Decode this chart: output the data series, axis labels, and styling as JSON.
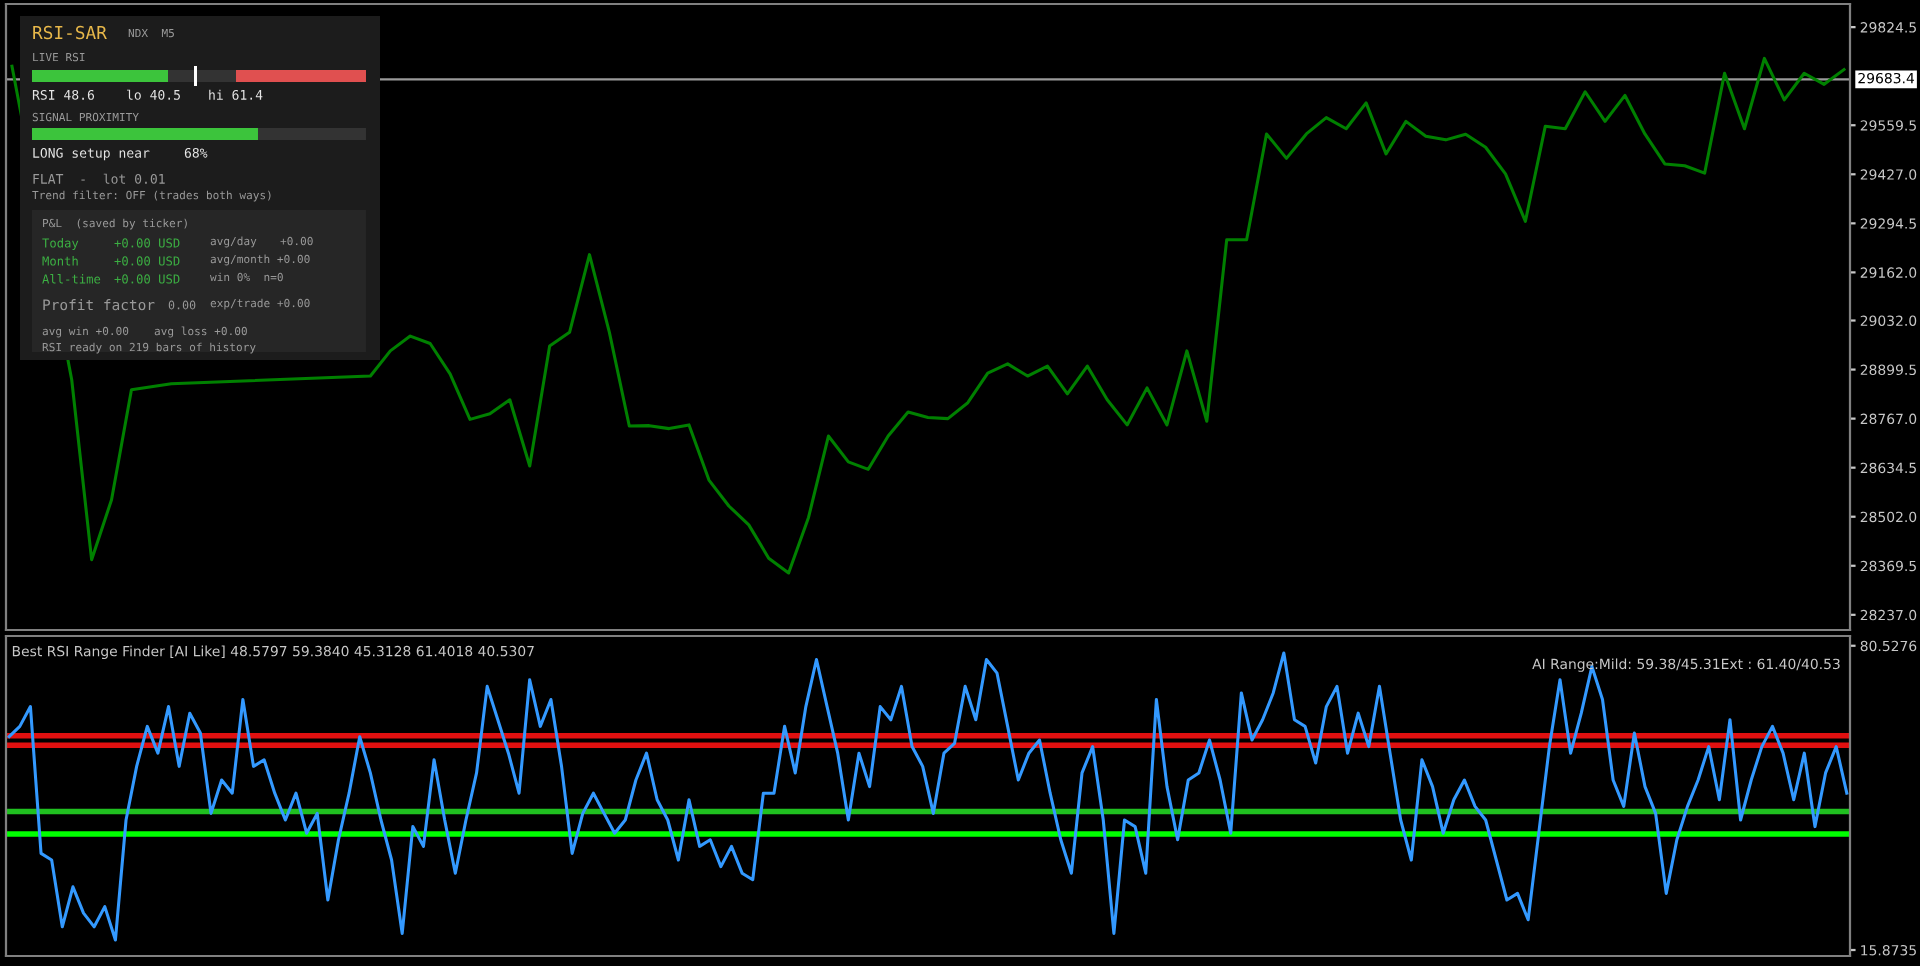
{
  "chart_data": [
    {
      "type": "line",
      "categories": [
        null,
        null,
        null,
        null,
        null,
        null,
        null,
        null,
        null,
        null,
        null,
        null,
        null,
        null,
        null,
        null,
        null,
        null,
        null,
        null,
        null,
        null,
        null,
        null,
        null,
        null,
        null,
        null,
        null,
        null,
        null,
        null,
        null,
        null,
        null,
        null,
        null,
        null,
        null,
        null,
        null,
        null,
        null,
        null,
        null,
        null,
        null,
        null,
        null,
        null,
        null,
        null,
        null,
        null,
        null,
        null,
        null,
        null,
        null,
        null,
        null,
        null,
        null,
        null,
        null,
        null,
        null,
        null,
        null,
        null,
        null,
        null,
        null,
        null,
        null,
        null,
        null,
        null,
        null,
        null,
        null,
        null,
        null,
        null,
        null,
        null,
        null,
        null,
        null,
        null,
        null,
        null,
        null
      ],
      "ylim": [
        28196,
        29887
      ],
      "yticks": [
        {
          "value": 28237,
          "label": "28237.0"
        },
        28369.5,
        {
          "value": 28502,
          "label": "28502.0"
        },
        28634.5,
        {
          "value": 28767,
          "label": "28767.0"
        },
        28899.5,
        {
          "value": 29032,
          "label": "29032.0"
        },
        {
          "value": 29162,
          "label": "29162.0"
        },
        29294.5,
        {
          "value": 29427,
          "label": "29427.0"
        },
        29559.5,
        29824.5
      ],
      "tick_labels": "y",
      "grid": false,
      "ref_lines": [
        {
          "axis": "y",
          "value": 29683.4,
          "label": "29683.4",
          "color": "#9a9a9a"
        }
      ],
      "series": [
        {
          "color": "#008000",
          "values": [
            29719,
            null,
            null,
            28872,
            28386,
            28548,
            28845,
            null,
            28861,
            null,
            null,
            null,
            null,
            null,
            null,
            null,
            null,
            null,
            28882,
            28950,
            28990,
            28970,
            28888,
            28765,
            28780,
            28818,
            28639,
            28963,
            29000,
            29210,
            29000,
            28747,
            28748,
            28740,
            28750,
            28601,
            28531,
            28480,
            28390,
            28350,
            28500,
            28720,
            28650,
            28630,
            28720,
            28785,
            28770,
            28767,
            28810,
            28890,
            28915,
            28882,
            28909,
            28834,
            28909,
            28818,
            28750,
            28850,
            28750,
            28950,
            28760,
            29250,
            29250,
            29536,
            29470,
            29536,
            29580,
            29550,
            29620,
            29482,
            29570,
            29530,
            29520,
            29535,
            29500,
            29428,
            29300,
            29557,
            29550,
            29650,
            29570,
            29640,
            29536,
            29455,
            29450,
            29430,
            29700,
            29550,
            29740,
            29628,
            29700,
            29670,
            29710
          ]
        }
      ]
    },
    {
      "type": "other",
      "title": "RSI-SAR",
      "subtitle": "NDX  M5",
      "annotations": [
        "LIVE RSI",
        "RSI 48.6",
        "lo 40.5",
        "hi 61.4",
        "SIGNAL PROXIMITY",
        "LONG setup near",
        "68%",
        "FLAT  -  lot 0.01",
        "Trend filter: OFF (trades both ways)",
        "P&L  (saved by ticker)",
        "Today",
        "+0.00 USD",
        "avg/day",
        "+0.00",
        "Month",
        "+0.00 USD",
        "avg/month +0.00",
        "All-time",
        "+0.00 USD",
        "win 0%  n=0",
        "Profit factor",
        "0.00",
        "exp/trade +0.00",
        "avg win +0.00",
        "avg loss +0.00",
        "RSI ready on 219 bars of history"
      ]
    },
    {
      "type": "line",
      "title": "Best RSI Range Finder [AI Like] 48.5797 59.3840 45.3128 61.4018 40.5307",
      "categories": [
        null,
        null,
        null,
        null,
        null,
        null,
        null,
        null,
        null,
        null,
        null,
        null,
        null,
        null,
        null,
        null,
        null,
        null,
        null,
        null,
        null,
        null,
        null,
        null,
        null,
        null,
        null,
        null,
        null,
        null,
        null,
        null,
        null,
        null,
        null,
        null,
        null,
        null,
        null,
        null,
        null,
        null,
        null,
        null,
        null,
        null,
        null,
        null,
        null,
        null,
        null,
        null,
        null,
        null,
        null,
        null,
        null,
        null,
        null,
        null,
        null,
        null,
        null,
        null,
        null,
        null,
        null,
        null,
        null,
        null,
        null,
        null,
        null,
        null,
        null,
        null,
        null,
        null,
        null,
        null,
        null,
        null,
        null,
        null,
        null,
        null,
        null,
        null,
        null,
        null,
        null,
        null,
        null,
        null,
        null,
        null,
        null,
        null,
        null,
        null,
        null,
        null,
        null,
        null,
        null,
        null,
        null,
        null,
        null,
        null,
        null,
        null,
        null,
        null,
        null,
        null,
        null,
        null,
        null,
        null,
        null,
        null,
        null,
        null,
        null,
        null,
        null,
        null,
        null,
        null,
        null,
        null,
        null,
        null,
        null,
        null,
        null,
        null,
        null,
        null,
        null,
        null,
        null,
        null,
        null,
        null,
        null,
        null,
        null,
        null,
        null,
        null,
        null,
        null,
        null,
        null,
        null,
        null,
        null,
        null,
        null,
        null,
        null,
        null,
        null,
        null,
        null,
        null,
        null,
        null,
        null,
        null,
        null,
        null
      ],
      "ylim": [
        14.6,
        82.6
      ],
      "yticks": [
        15.8735,
        80.5276
      ],
      "tick_labels": "y",
      "grid": false,
      "annotations": [
        "AI Range:Mild: 59.38/45.31Ext : 61.40/40.53"
      ],
      "ref_lines": [
        {
          "axis": "y",
          "value": 61.4,
          "color": "#e01010"
        },
        {
          "axis": "y",
          "value": 59.38,
          "color": "#e01010"
        },
        {
          "axis": "y",
          "value": 45.31,
          "color": "#20c020"
        },
        {
          "axis": "y",
          "value": 40.53,
          "color": "#00ff00"
        }
      ],
      "series": [
        {
          "color": "#3399ff",
          "values": [
            61.2,
            63.4,
            67.6,
            36.4,
            35.0,
            20.8,
            29.3,
            23.7,
            20.8,
            25.1,
            18.0,
            43.5,
            54.9,
            63.4,
            57.7,
            67.6,
            54.9,
            66.2,
            62.0,
            44.9,
            52.0,
            49.2,
            69.1,
            54.9,
            56.3,
            49.2,
            43.5,
            49.2,
            40.7,
            44.9,
            26.5,
            39.3,
            49.2,
            61.2,
            53.5,
            43.5,
            35.0,
            19.4,
            42.1,
            37.9,
            56.3,
            43.5,
            32.2,
            43.5,
            53.5,
            71.9,
            64.8,
            57.7,
            49.2,
            73.3,
            63.4,
            69.1,
            54.9,
            36.4,
            44.9,
            49.2,
            44.9,
            40.7,
            43.5,
            52.0,
            57.7,
            47.8,
            43.5,
            35.0,
            47.8,
            37.9,
            39.3,
            33.6,
            37.9,
            32.2,
            30.8,
            49.2,
            49.2,
            63.4,
            53.5,
            67.6,
            77.6,
            67.6,
            57.7,
            43.5,
            57.7,
            50.6,
            67.6,
            64.8,
            71.9,
            59.1,
            54.9,
            44.9,
            57.7,
            59.8,
            71.9,
            64.8,
            77.6,
            74.7,
            63.4,
            52.0,
            57.7,
            60.5,
            49.2,
            39.3,
            32.2,
            53.5,
            59.1,
            43.5,
            19.4,
            43.5,
            42.1,
            32.2,
            69.1,
            50.6,
            39.3,
            52.0,
            53.5,
            60.5,
            52.0,
            40.7,
            70.5,
            60.5,
            64.8,
            70.5,
            79.0,
            64.8,
            63.4,
            55.6,
            67.6,
            71.9,
            57.7,
            66.2,
            59.1,
            71.9,
            57.7,
            43.5,
            35.0,
            56.3,
            50.6,
            40.7,
            47.8,
            52.0,
            46.4,
            43.5,
            35.0,
            26.5,
            27.9,
            22.3,
            40.7,
            59.1,
            73.3,
            57.7,
            66.2,
            76.1,
            69.1,
            52.0,
            46.4,
            62.0,
            50.6,
            44.9,
            27.9,
            39.3,
            46.4,
            52.0,
            59.1,
            47.8,
            64.8,
            43.5,
            52.0,
            59.1,
            63.4,
            57.7,
            47.8,
            57.7,
            42.1,
            53.5,
            59.1,
            49.2
          ]
        }
      ]
    }
  ]
}
